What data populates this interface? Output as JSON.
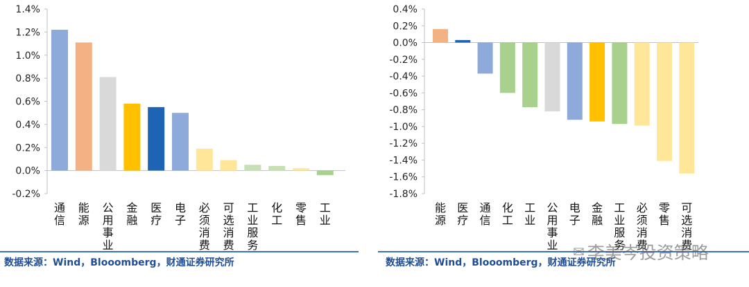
{
  "chart_data": [
    {
      "type": "bar",
      "categories": [
        "通信",
        "能源",
        "公用事业",
        "金融",
        "医疗",
        "电子",
        "必须消费",
        "可选消费",
        "工业服务",
        "化工",
        "零售",
        "工业"
      ],
      "values": [
        1.22,
        1.11,
        0.81,
        0.58,
        0.55,
        0.5,
        0.19,
        0.09,
        0.05,
        0.04,
        0.02,
        -0.04
      ],
      "colors": [
        "#8eaadb",
        "#f4b183",
        "#d9d9d9",
        "#ffc000",
        "#1f63b5",
        "#8eaadb",
        "#ffe699",
        "#ffe699",
        "#c5e0b4",
        "#c5e0b4",
        "#ffe699",
        "#a9d18e"
      ],
      "ylim": [
        -0.2,
        1.4
      ],
      "yticks": [
        "-0.2%",
        "0.0%",
        "0.2%",
        "0.4%",
        "0.6%",
        "0.8%",
        "1.0%",
        "1.2%",
        "1.4%"
      ],
      "grid": false,
      "title": "",
      "xlabel": "",
      "ylabel": ""
    },
    {
      "type": "bar",
      "categories": [
        "能源",
        "医疗",
        "通信",
        "化工",
        "工业",
        "公用事业",
        "电子",
        "金融",
        "工业服务",
        "必须消费",
        "零售",
        "可选消费"
      ],
      "values": [
        0.16,
        0.03,
        -0.37,
        -0.6,
        -0.77,
        -0.82,
        -0.92,
        -0.94,
        -0.97,
        -0.99,
        -1.41,
        -1.56
      ],
      "colors": [
        "#f4b183",
        "#1f63b5",
        "#8eaadb",
        "#a9d18e",
        "#a9d18e",
        "#d9d9d9",
        "#8eaadb",
        "#ffc000",
        "#a9d18e",
        "#ffe699",
        "#ffe699",
        "#ffe699"
      ],
      "ylim": [
        -1.8,
        0.4
      ],
      "yticks": [
        "-1.8%",
        "-1.6%",
        "-1.4%",
        "-1.2%",
        "-1.0%",
        "-0.8%",
        "-0.6%",
        "-0.4%",
        "-0.2%",
        "0.0%",
        "0.2%",
        "0.4%"
      ],
      "grid": false,
      "title": "",
      "xlabel": "",
      "ylabel": ""
    }
  ],
  "footer": {
    "source_left": "数据来源：Wind，Blooomberg，财通证券研究所",
    "source_right": "数据来源：Wind，Blooomberg，财通证券研究所",
    "watermark": "李美岑投资策略"
  }
}
